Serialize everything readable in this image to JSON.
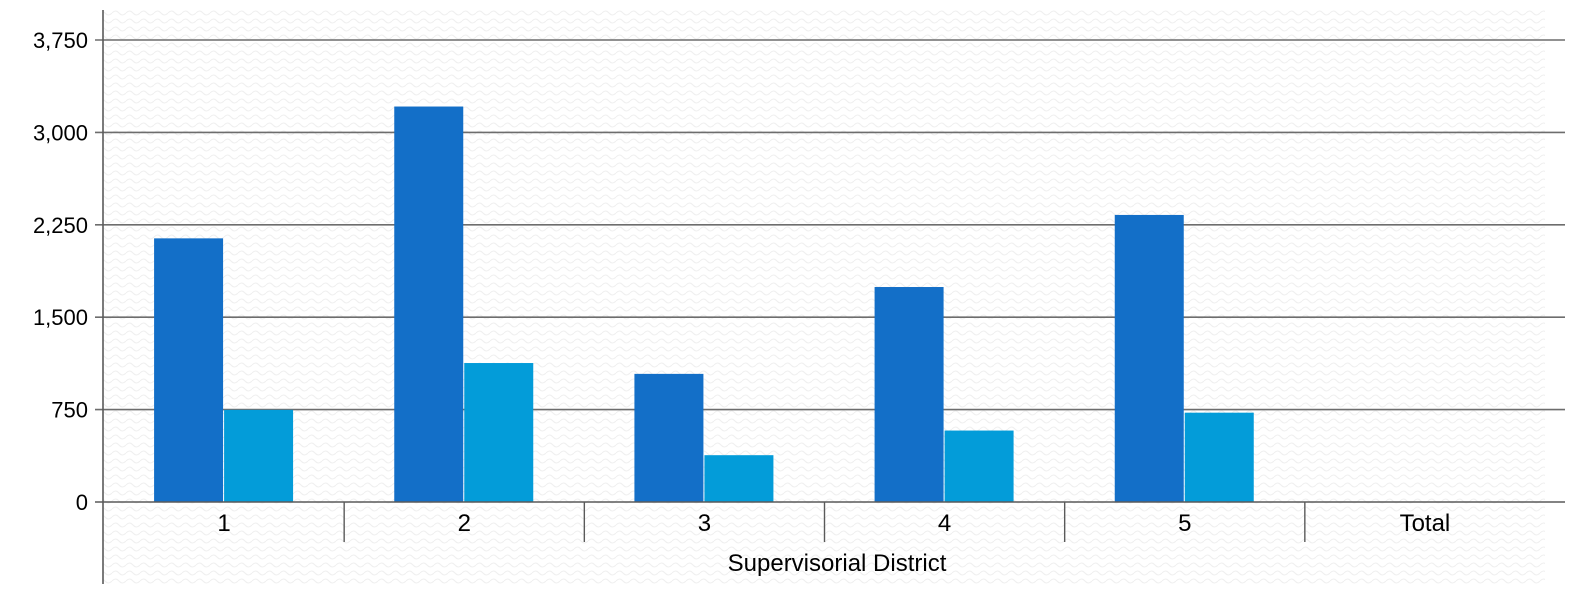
{
  "chart_data": {
    "type": "bar",
    "title": "",
    "xlabel": "Supervisorial District",
    "ylabel": "",
    "categories": [
      "1",
      "2",
      "3",
      "4",
      "5",
      "Total"
    ],
    "series": [
      {
        "values": [
          2140,
          3210,
          1040,
          1745,
          2330,
          null
        ]
      },
      {
        "values": [
          748,
          1128,
          380,
          580,
          725,
          null
        ]
      }
    ],
    "ylim": [
      0,
      3750
    ],
    "yticks": [
      0,
      750,
      1500,
      2250,
      3000,
      3750
    ],
    "ytick_labels": [
      "0",
      "750",
      "1,500",
      "2,250",
      "3,000",
      "3,750"
    ],
    "grid": true,
    "legend": "none",
    "colors": {
      "series_1": "#136fc8",
      "series_2": "#039cd9",
      "grid": "#6d6d6d",
      "axis": "#5a5a5a"
    }
  }
}
